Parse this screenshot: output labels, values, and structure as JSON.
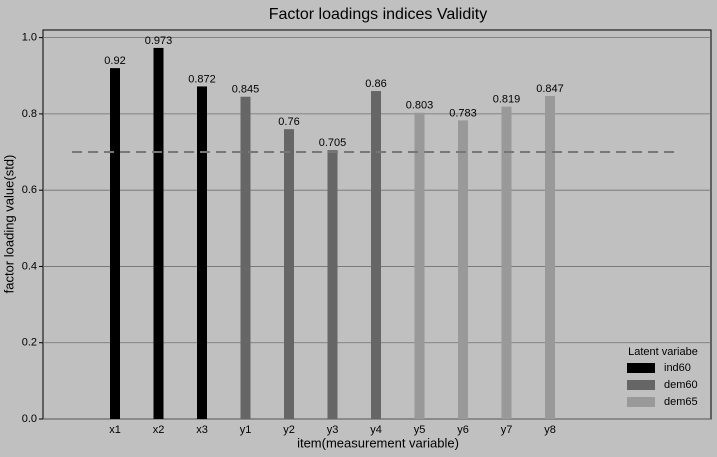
{
  "chart_data": {
    "type": "bar",
    "title": "Factor loadings indices Validity",
    "xlabel": "item(measurement variable)",
    "ylabel": "factor loading value(std)",
    "categories": [
      "x1",
      "x2",
      "x3",
      "y1",
      "y2",
      "y3",
      "y4",
      "y5",
      "y6",
      "y7",
      "y8"
    ],
    "series": [
      {
        "name": "ind60",
        "color": "#000000",
        "values": [
          0.92,
          0.973,
          0.872,
          null,
          null,
          null,
          null,
          null,
          null,
          null,
          null
        ]
      },
      {
        "name": "dem60",
        "color": "#666666",
        "values": [
          null,
          null,
          null,
          0.845,
          0.76,
          0.705,
          0.86,
          null,
          null,
          null,
          null
        ]
      },
      {
        "name": "dem65",
        "color": "#999999",
        "values": [
          null,
          null,
          null,
          null,
          null,
          null,
          null,
          0.803,
          0.783,
          0.819,
          0.847
        ]
      }
    ],
    "reference_line": 0.7,
    "ylim": [
      0,
      1.02
    ],
    "yticks": [
      {
        "value": 0,
        "label": "0.0"
      },
      0.2,
      0.4,
      0.6,
      0.8,
      {
        "value": 1,
        "label": "1.0"
      }
    ],
    "grid": true,
    "legend_title": "Latent variabe",
    "legend_position": "lower-right"
  }
}
